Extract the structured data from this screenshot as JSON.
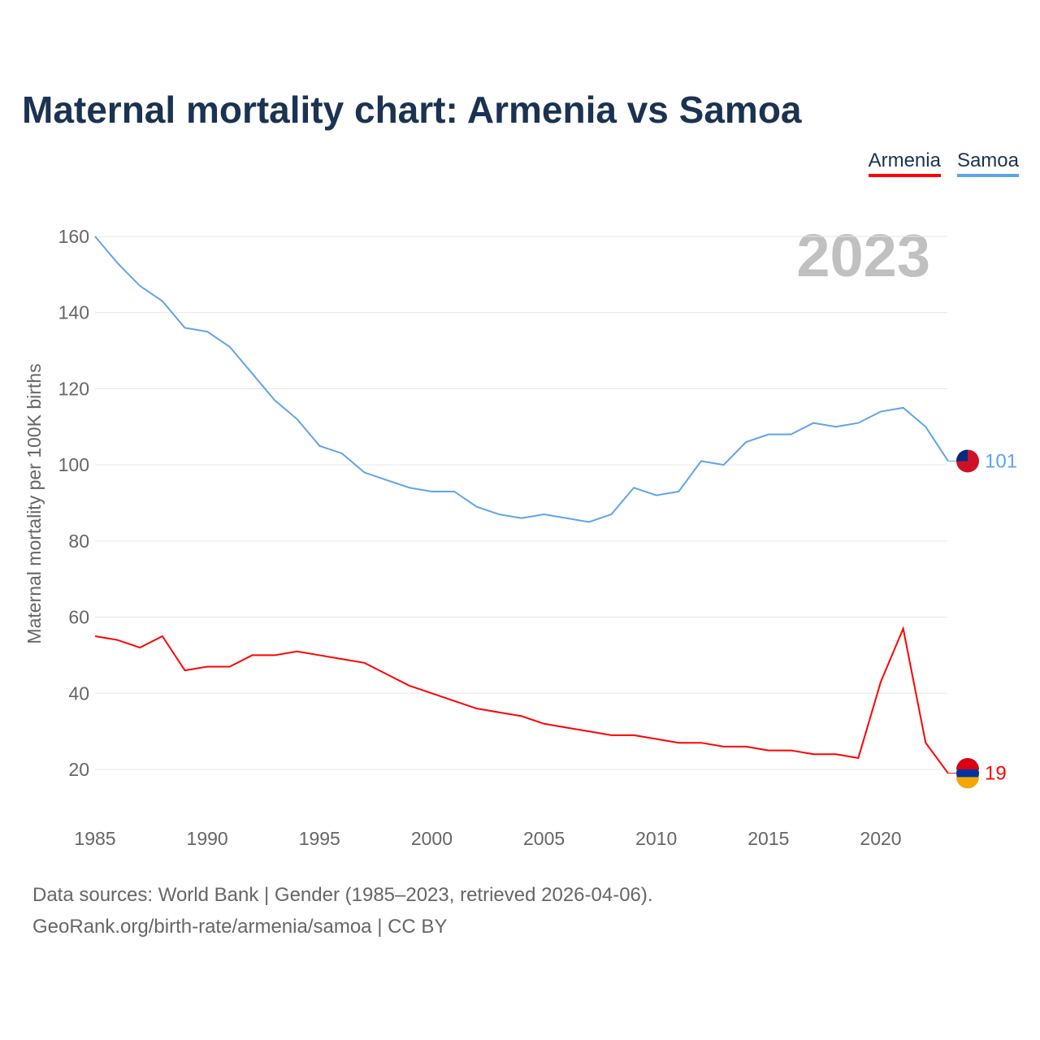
{
  "title": "Maternal mortality chart: Armenia vs Samoa",
  "legend": [
    {
      "name": "Armenia",
      "color": "#ff0000"
    },
    {
      "name": "Samoa",
      "color": "#5fa4ea"
    }
  ],
  "year_label": "2023",
  "source_line1": "Data sources: World Bank | Gender (1985–2023, retrieved 2026-04-06).",
  "source_line2": "GeoRank.org/birth-rate/armenia/samoa | CC BY",
  "chart_data": {
    "type": "line",
    "title": "Maternal mortality chart: Armenia vs Samoa",
    "xlabel": "",
    "ylabel": "Maternal mortality per 100K births",
    "xlim": [
      1985,
      2023
    ],
    "ylim": [
      10,
      165
    ],
    "yticks": [
      20,
      40,
      60,
      80,
      100,
      120,
      140,
      160
    ],
    "xticks": [
      1985,
      1990,
      1995,
      2000,
      2005,
      2010,
      2015,
      2020
    ],
    "grid": true,
    "legend_position": "top-right",
    "x": [
      1985,
      1986,
      1987,
      1988,
      1989,
      1990,
      1991,
      1992,
      1993,
      1994,
      1995,
      1996,
      1997,
      1998,
      1999,
      2000,
      2001,
      2002,
      2003,
      2004,
      2005,
      2006,
      2007,
      2008,
      2009,
      2010,
      2011,
      2012,
      2013,
      2014,
      2015,
      2016,
      2017,
      2018,
      2019,
      2020,
      2021,
      2022,
      2023
    ],
    "series": [
      {
        "name": "Armenia",
        "color": "#ff0000",
        "end_label": "19",
        "values": [
          55,
          54,
          52,
          55,
          46,
          47,
          47,
          50,
          50,
          51,
          50,
          49,
          48,
          45,
          42,
          40,
          38,
          36,
          35,
          34,
          32,
          31,
          30,
          29,
          29,
          28,
          27,
          27,
          26,
          26,
          25,
          25,
          24,
          24,
          23,
          43,
          57,
          27,
          19
        ]
      },
      {
        "name": "Samoa",
        "color": "#5fa4ea",
        "end_label": "101",
        "values": [
          160,
          153,
          147,
          143,
          136,
          135,
          131,
          124,
          117,
          112,
          105,
          103,
          98,
          96,
          94,
          93,
          93,
          89,
          87,
          86,
          87,
          86,
          85,
          87,
          94,
          92,
          93,
          101,
          100,
          106,
          108,
          108,
          111,
          110,
          111,
          114,
          115,
          110,
          101
        ]
      }
    ]
  }
}
